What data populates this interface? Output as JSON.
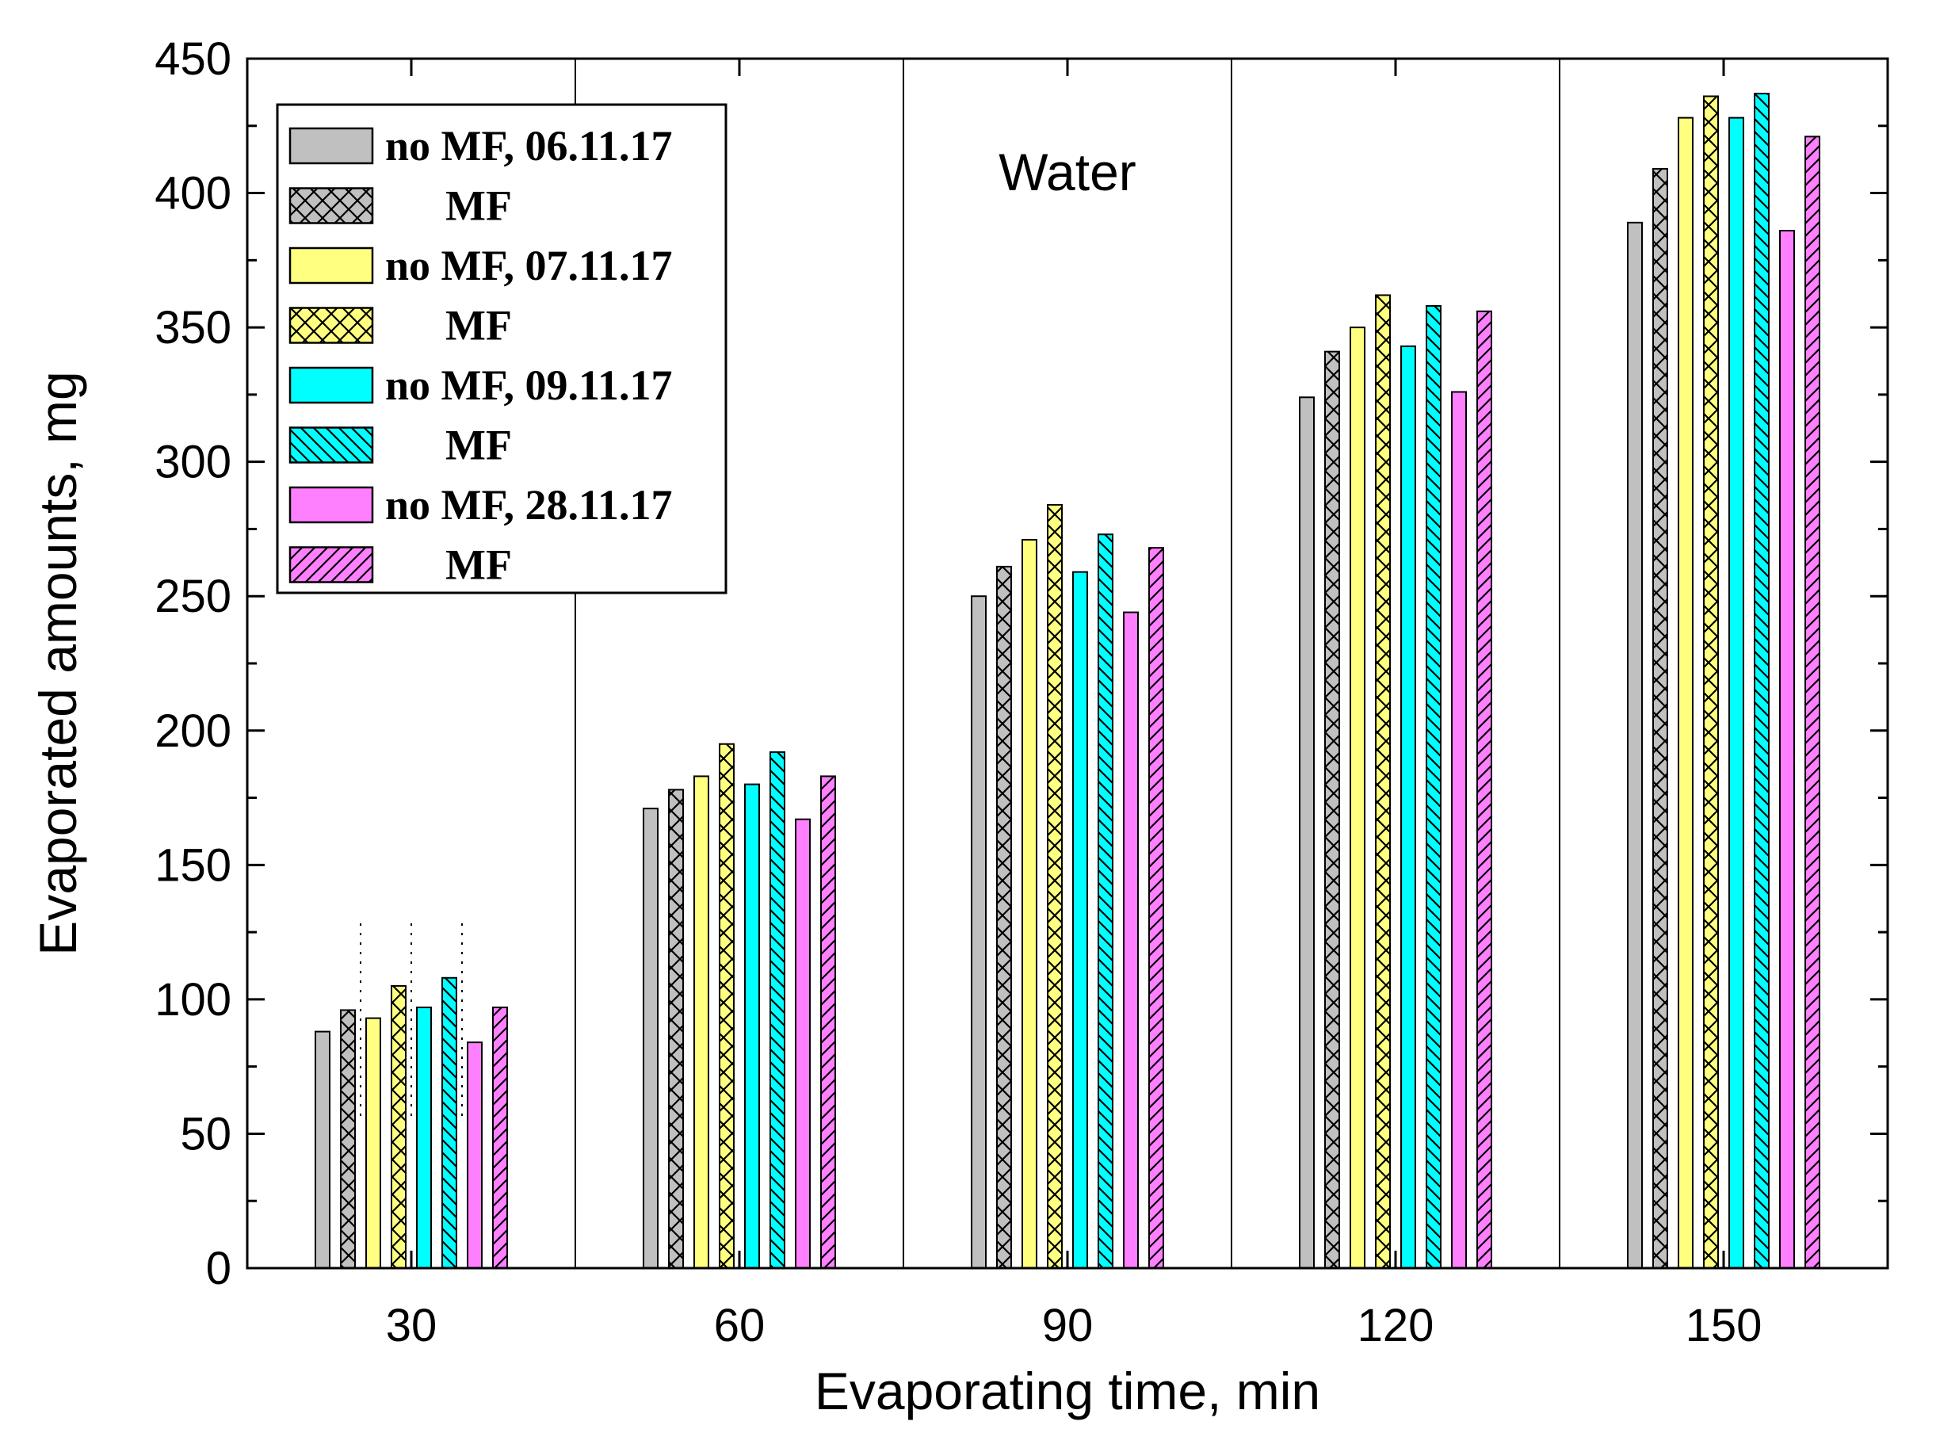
{
  "chart_data": {
    "type": "bar",
    "title": "",
    "annotation": "Water",
    "xlabel": "Evaporating time, min",
    "ylabel": "Evaporated amounts, mg",
    "ylim": [
      0,
      450
    ],
    "yticks": [
      0,
      50,
      100,
      150,
      200,
      250,
      300,
      350,
      400,
      450
    ],
    "categories": [
      "30",
      "60",
      "90",
      "120",
      "150"
    ],
    "legend_position": "top-left",
    "series": [
      {
        "name": "no MF, 06.11.17",
        "color": "#c0c0c0",
        "pattern": "solid",
        "values": [
          88,
          171,
          250,
          324,
          389
        ]
      },
      {
        "name": "MF",
        "color": "#c0c0c0",
        "pattern": "cross",
        "values": [
          96,
          178,
          261,
          341,
          409
        ]
      },
      {
        "name": "no MF, 07.11.17",
        "color": "#ffff80",
        "pattern": "solid",
        "values": [
          93,
          183,
          271,
          350,
          428
        ]
      },
      {
        "name": "MF",
        "color": "#ffff80",
        "pattern": "cross",
        "values": [
          105,
          195,
          284,
          362,
          436
        ]
      },
      {
        "name": "no MF, 09.11.17",
        "color": "#00ffff",
        "pattern": "solid",
        "values": [
          97,
          180,
          259,
          343,
          428
        ]
      },
      {
        "name": "MF",
        "color": "#00ffff",
        "pattern": "backdiag",
        "values": [
          108,
          192,
          273,
          358,
          437
        ]
      },
      {
        "name": "no MF, 28.11.17",
        "color": "#ff80ff",
        "pattern": "solid",
        "values": [
          84,
          167,
          244,
          326,
          386
        ]
      },
      {
        "name": "MF",
        "color": "#ff80ff",
        "pattern": "fwddiag",
        "values": [
          97,
          183,
          268,
          356,
          421
        ]
      }
    ]
  }
}
